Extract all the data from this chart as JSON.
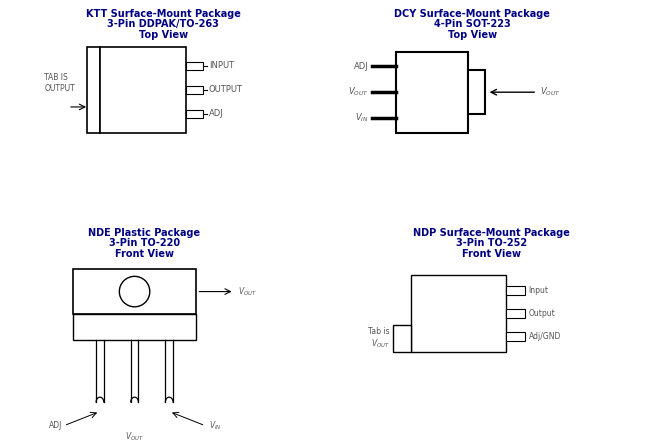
{
  "bg_color": "#ffffff",
  "title_color": "#000080",
  "label_color": "#555555",
  "line_color": "#000000",
  "ktt_title": [
    "KTT Surface-Mount Package",
    "3-Pin DDPAK/TO-263",
    "Top View"
  ],
  "nde_title": [
    "NDE Plastic Package",
    "3-Pin TO-220",
    "Front View"
  ],
  "dcy_title": [
    "DCY Surface-Mount Package",
    "4-Pin SOT-223",
    "Top View"
  ],
  "ndp_title": [
    "NDP Surface-Mount Package",
    "3-Pin TO-252",
    "Front View"
  ],
  "title_fontsize": 7.0,
  "label_fontsize": 6.0,
  "sub_label_fontsize": 5.5
}
